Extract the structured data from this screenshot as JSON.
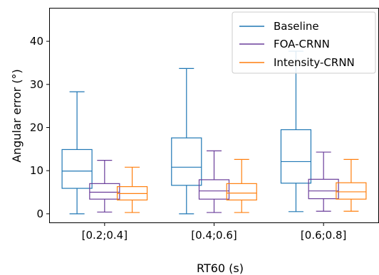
{
  "chart_data": {
    "type": "boxplot",
    "title": "",
    "xlabel": "RT60 (s)",
    "ylabel": "Angular error (°)",
    "ylim": [
      -2,
      47.6
    ],
    "yticks": [
      0,
      10,
      20,
      30,
      40
    ],
    "grid": false,
    "legend_position": "top-right",
    "categories": [
      "[0.2;0.4]",
      "[0.4;0.6]",
      "[0.6;0.8]"
    ],
    "series": [
      {
        "name": "Baseline",
        "color": "#1f77b4",
        "boxes": [
          {
            "whisker_low": 0.0,
            "q1": 5.9,
            "median": 9.9,
            "q3": 14.9,
            "whisker_high": 28.3
          },
          {
            "whisker_low": 0.0,
            "q1": 6.6,
            "median": 10.8,
            "q3": 17.6,
            "whisker_high": 33.7
          },
          {
            "whisker_low": 0.5,
            "q1": 7.1,
            "median": 12.1,
            "q3": 19.5,
            "whisker_high": 37.7
          }
        ]
      },
      {
        "name": "FOA-CRNN",
        "color": "#6a3d9a",
        "boxes": [
          {
            "whisker_low": 0.4,
            "q1": 3.4,
            "median": 5.0,
            "q3": 7.0,
            "whisker_high": 12.4
          },
          {
            "whisker_low": 0.3,
            "q1": 3.4,
            "median": 5.3,
            "q3": 7.9,
            "whisker_high": 14.6
          },
          {
            "whisker_low": 0.6,
            "q1": 3.5,
            "median": 5.3,
            "q3": 8.0,
            "whisker_high": 14.3
          }
        ]
      },
      {
        "name": "Intensity-CRNN",
        "color": "#ff7f0e",
        "boxes": [
          {
            "whisker_low": 0.3,
            "q1": 3.2,
            "median": 4.7,
            "q3": 6.3,
            "whisker_high": 10.8
          },
          {
            "whisker_low": 0.3,
            "q1": 3.2,
            "median": 4.8,
            "q3": 7.0,
            "whisker_high": 12.6
          },
          {
            "whisker_low": 0.6,
            "q1": 3.4,
            "median": 5.1,
            "q3": 7.2,
            "whisker_high": 12.6
          }
        ]
      }
    ]
  }
}
